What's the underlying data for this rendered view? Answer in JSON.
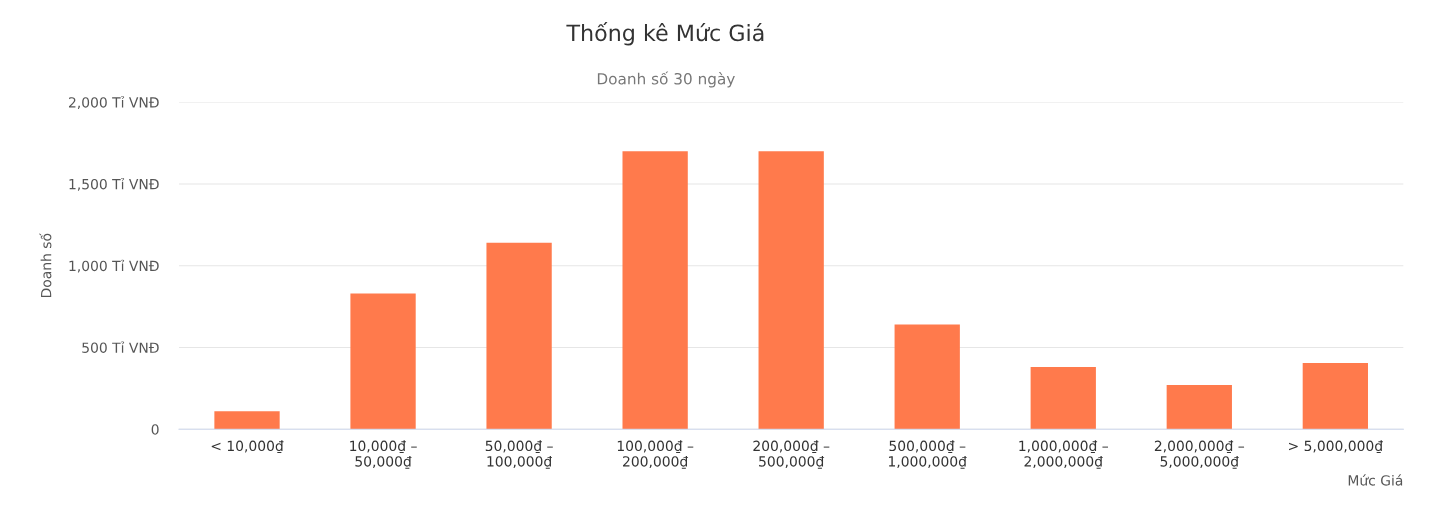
{
  "chart_data": {
    "type": "bar",
    "title": "Thống kê Mức Giá",
    "subtitle": "Doanh số 30 ngày",
    "xlabel": "Mức Giá",
    "ylabel": "Doanh số",
    "categories": [
      "< 10,000₫",
      "10,000₫ –\n50,000₫",
      "50,000₫ –\n100,000₫",
      "100,000₫ –\n200,000₫",
      "200,000₫ –\n500,000₫",
      "500,000₫ –\n1,000,000₫",
      "1,000,000₫ –\n2,000,000₫",
      "2,000,000₫ –\n5,000,000₫",
      "> 5,000,000₫"
    ],
    "values": [
      110,
      830,
      1140,
      1700,
      1700,
      640,
      380,
      270,
      405
    ],
    "color": "#ff7a4c",
    "ylim": [
      0,
      2000
    ],
    "yticks": [
      0,
      {
        "value": 500,
        "label": "500 Tỉ VNĐ"
      },
      {
        "value": 1000,
        "label": "1,000 Tỉ VNĐ"
      },
      {
        "value": 1500,
        "label": "1,500 Tỉ VNĐ"
      },
      {
        "value": 2000,
        "label": "2,000 Tỉ VNĐ"
      }
    ],
    "grid": "y",
    "legend": false
  }
}
